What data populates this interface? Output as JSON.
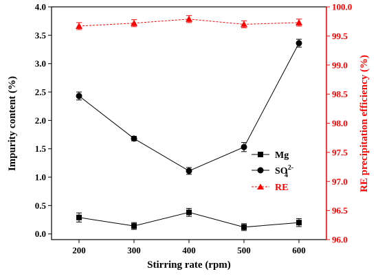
{
  "chart_data": {
    "type": "line",
    "x": [
      200,
      300,
      400,
      500,
      600
    ],
    "xlabel": "Stirring rate (rpm)",
    "xlim": [
      150,
      650
    ],
    "xticks": [
      "200",
      "300",
      "400",
      "500",
      "600"
    ],
    "ylabel_left": "Impurity content (%)",
    "ylim_left": [
      -0.1,
      4.0
    ],
    "yticks_left": [
      "0.0",
      "0.5",
      "1.0",
      "1.5",
      "2.0",
      "2.5",
      "3.0",
      "3.5",
      "4.0"
    ],
    "ylabel_right": "RE precipitation efficiency (%)",
    "ylim_right": [
      96.0,
      100.0
    ],
    "yticks_right": [
      "96.0",
      "96.5",
      "97.0",
      "97.5",
      "98.0",
      "98.5",
      "99.0",
      "99.5",
      "100.0"
    ],
    "right_axis_color": "#ff0000",
    "series": [
      {
        "name": "Mg",
        "axis": "left",
        "marker": "square",
        "color": "#000000",
        "values": [
          0.29,
          0.14,
          0.38,
          0.12,
          0.2
        ],
        "errors": [
          0.08,
          0.06,
          0.07,
          0.06,
          0.07
        ]
      },
      {
        "name": "SO",
        "name_sub": "4",
        "name_sup": "2-",
        "axis": "left",
        "marker": "circle",
        "color": "#000000",
        "values": [
          2.43,
          1.68,
          1.11,
          1.53,
          3.36
        ],
        "errors": [
          0.07,
          0.04,
          0.06,
          0.08,
          0.07
        ]
      },
      {
        "name": "RE",
        "axis": "right",
        "marker": "triangle",
        "color": "#ff0000",
        "values": [
          99.67,
          99.72,
          99.79,
          99.7,
          99.73
        ],
        "errors": [
          0.06,
          0.06,
          0.06,
          0.06,
          0.06
        ]
      }
    ],
    "legend_position": "lower-right"
  }
}
